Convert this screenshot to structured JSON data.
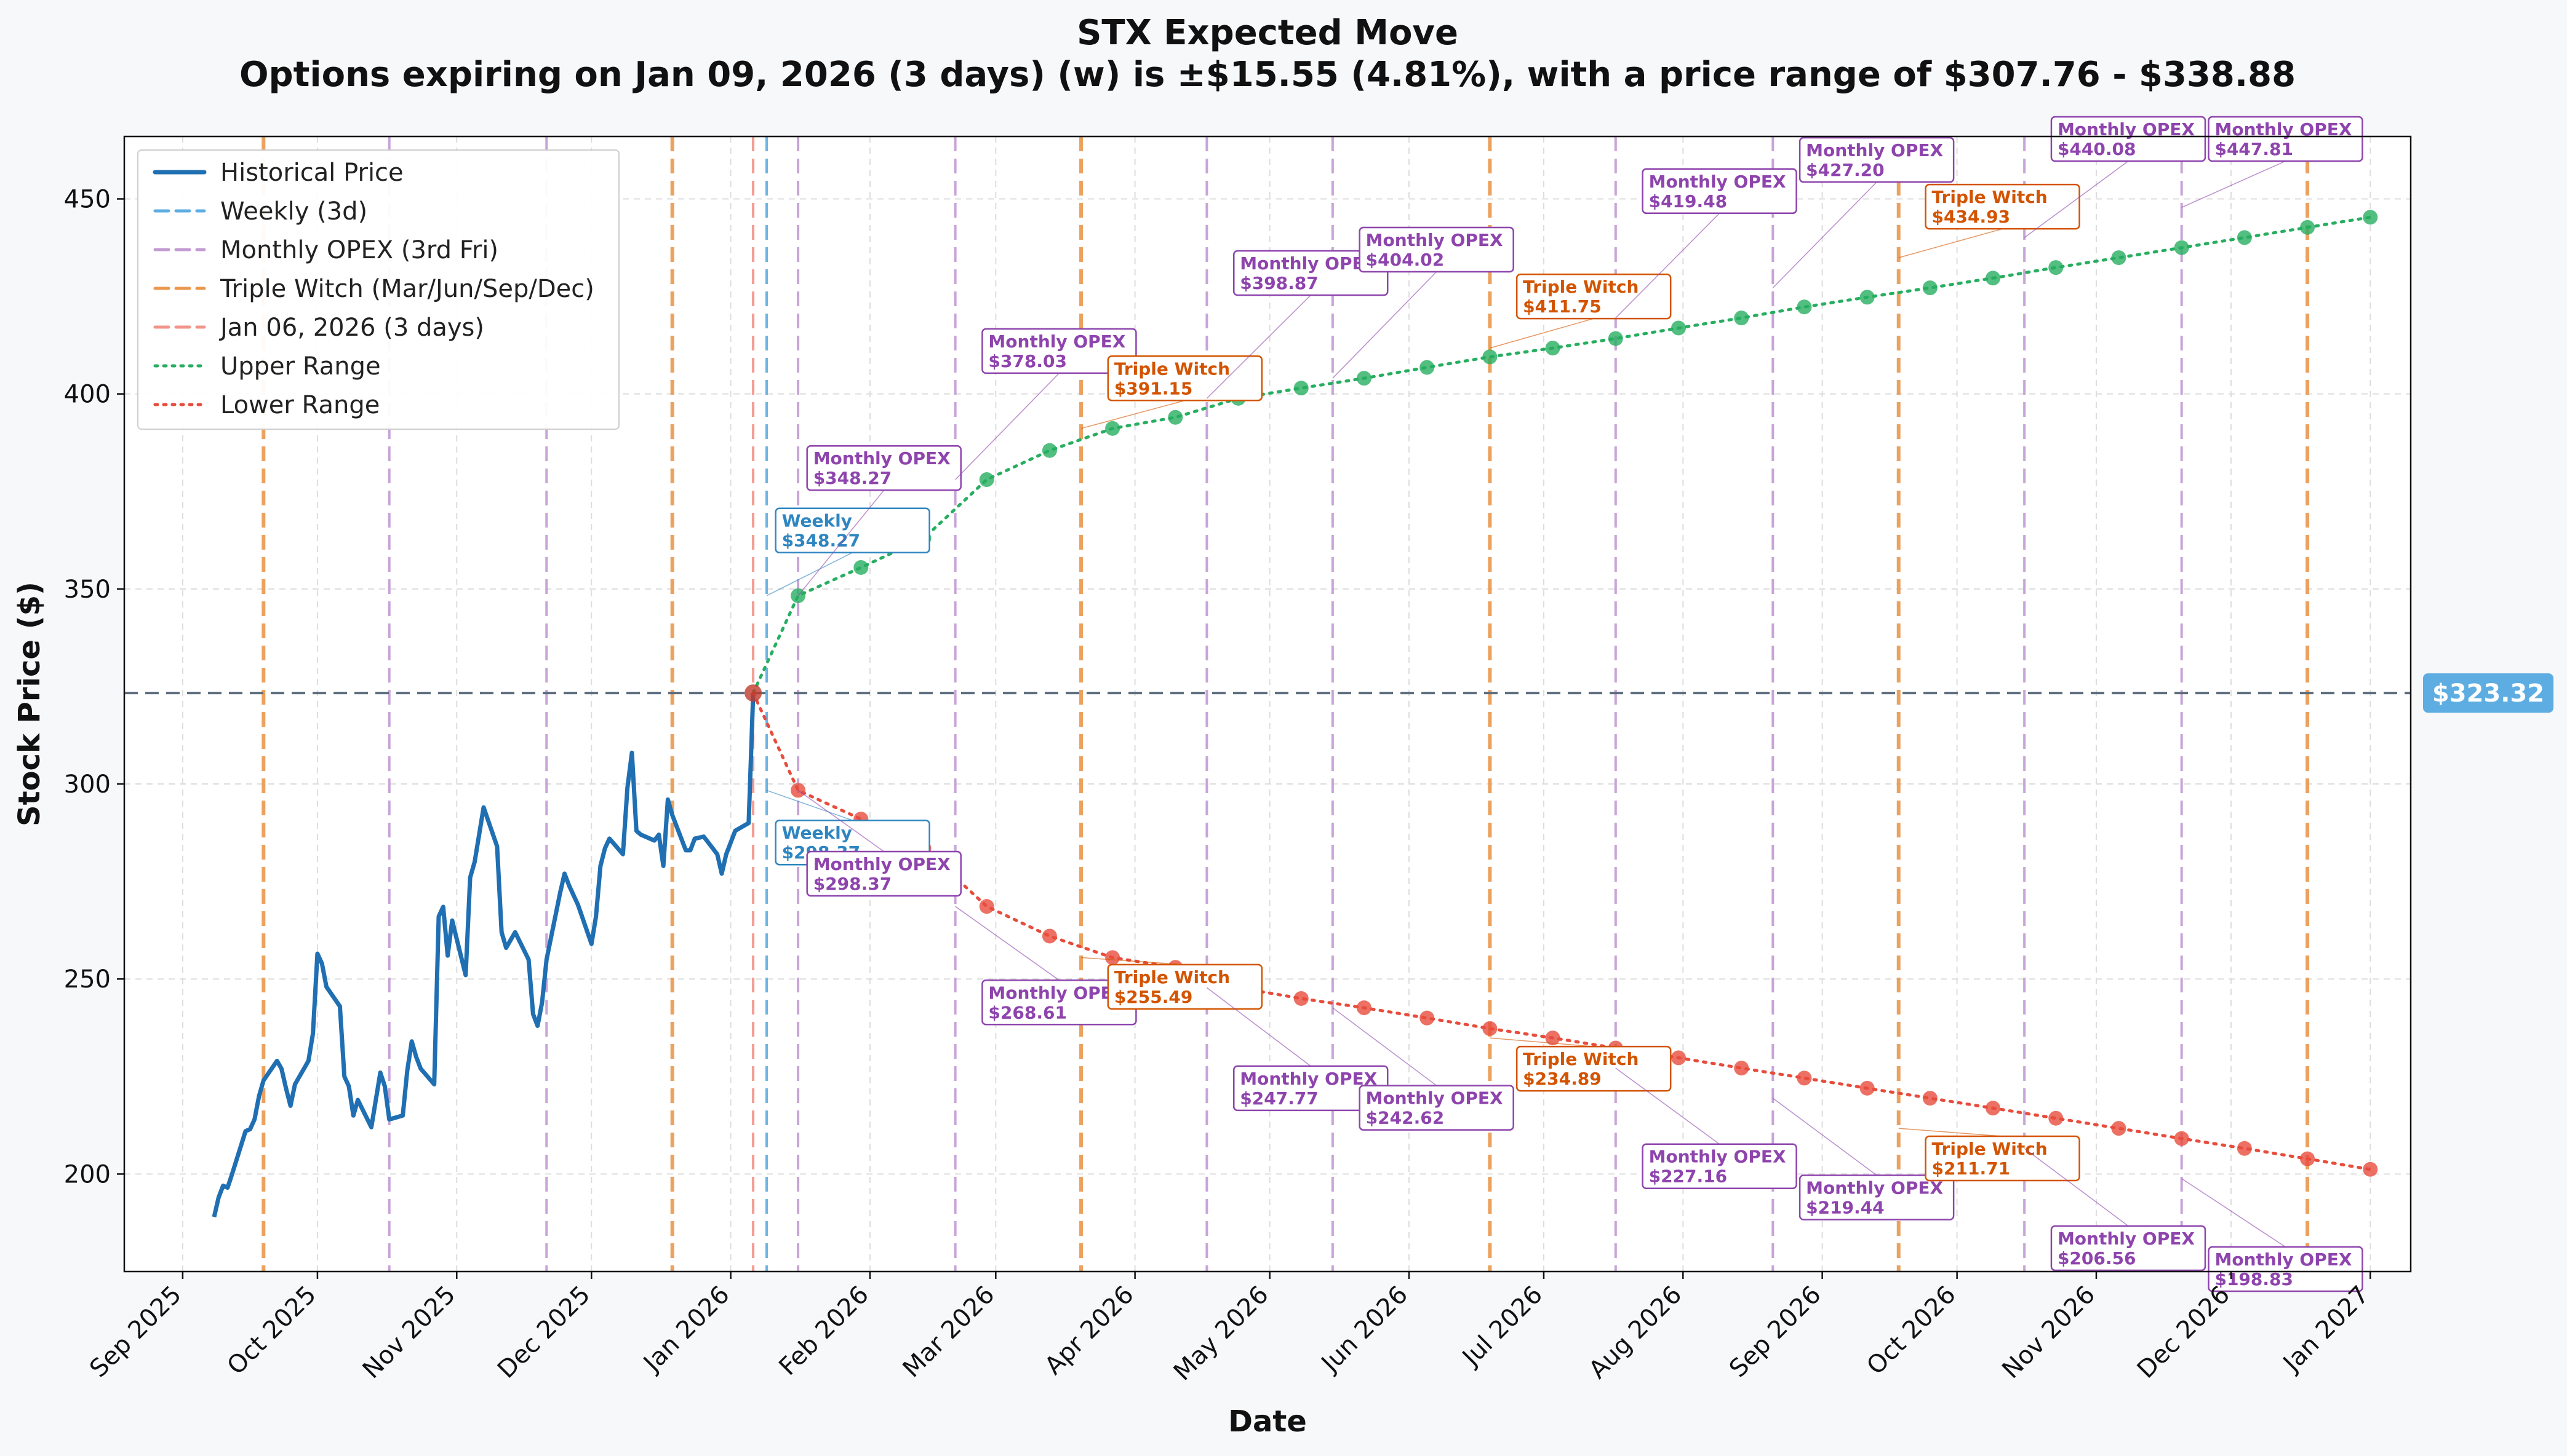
{
  "chart_data": {
    "type": "line",
    "title": "STX Expected Move",
    "subtitle": "Options expiring on Jan 09, 2026 (3 days) (w) is ±$15.55 (4.81%), with a price range of $307.76 - $338.88",
    "xlabel": "Date",
    "ylabel": "Stock Price ($)",
    "ylim": [
      175,
      466
    ],
    "xlim": [
      "2025-08-19",
      "2027-01-10"
    ],
    "grid": true,
    "legend_position": "top-left",
    "x_ticks": [
      "2025-09-01",
      "2025-10-01",
      "2025-11-01",
      "2025-12-01",
      "2026-01-01",
      "2026-02-01",
      "2026-03-01",
      "2026-04-01",
      "2026-05-01",
      "2026-06-01",
      "2026-07-01",
      "2026-08-01",
      "2026-09-01",
      "2026-10-01",
      "2026-11-01",
      "2026-12-01",
      "2027-01-01"
    ],
    "x_tick_labels": [
      "Sep 2025",
      "Oct 2025",
      "Nov 2025",
      "Dec 2025",
      "Jan 2026",
      "Feb 2026",
      "Mar 2026",
      "Apr 2026",
      "May 2026",
      "Jun 2026",
      "Jul 2026",
      "Aug 2026",
      "Sep 2026",
      "Oct 2026",
      "Nov 2026",
      "Dec 2026",
      "Jan 2027"
    ],
    "y_ticks": [
      200,
      250,
      300,
      350,
      400,
      450
    ],
    "current_price": 323.32,
    "current_price_label": "$323.32",
    "current_date": "2026-01-06",
    "colors": {
      "historical": "#1f6fb2",
      "weekly": "#5dade2",
      "monthly": "#c39bd3",
      "triple": "#eb984e",
      "today": "#f1948a",
      "upper": "#27ae60",
      "lower": "#e74c3c",
      "current_line": "#5d6d7e",
      "monthly_text": "#8e44ad",
      "triple_text": "#d35400",
      "weekly_text": "#2e86c1",
      "price_badge": "#5dade2"
    },
    "legend": [
      {
        "label": "Historical Price",
        "style": "solid",
        "color": "#1f6fb2"
      },
      {
        "label": "Weekly (3d)",
        "style": "dashed",
        "color": "#5dade2"
      },
      {
        "label": "Monthly OPEX (3rd Fri)",
        "style": "dashed",
        "color": "#c39bd3"
      },
      {
        "label": "Triple Witch (Mar/Jun/Sep/Dec)",
        "style": "dashed",
        "color": "#eb984e"
      },
      {
        "label": "Jan 06, 2026 (3 days)",
        "style": "dashed",
        "color": "#f1948a"
      },
      {
        "label": "Upper Range",
        "style": "dotted",
        "color": "#27ae60"
      },
      {
        "label": "Lower Range",
        "style": "dotted",
        "color": "#e74c3c"
      }
    ],
    "vertical_lines": [
      {
        "date": "2025-09-19",
        "kind": "triple"
      },
      {
        "date": "2025-10-17",
        "kind": "monthly"
      },
      {
        "date": "2025-11-21",
        "kind": "monthly"
      },
      {
        "date": "2025-12-19",
        "kind": "triple"
      },
      {
        "date": "2026-01-06",
        "kind": "today"
      },
      {
        "date": "2026-01-09",
        "kind": "weekly"
      },
      {
        "date": "2026-01-16",
        "kind": "monthly"
      },
      {
        "date": "2026-02-20",
        "kind": "monthly"
      },
      {
        "date": "2026-03-20",
        "kind": "triple"
      },
      {
        "date": "2026-04-17",
        "kind": "monthly"
      },
      {
        "date": "2026-05-15",
        "kind": "monthly"
      },
      {
        "date": "2026-06-19",
        "kind": "triple"
      },
      {
        "date": "2026-07-17",
        "kind": "monthly"
      },
      {
        "date": "2026-08-21",
        "kind": "monthly"
      },
      {
        "date": "2026-09-18",
        "kind": "triple"
      },
      {
        "date": "2026-10-16",
        "kind": "monthly"
      },
      {
        "date": "2026-11-20",
        "kind": "monthly"
      },
      {
        "date": "2026-12-18",
        "kind": "triple"
      }
    ],
    "historical": {
      "name": "Historical Price",
      "x": [
        "2025-09-08",
        "2025-09-09",
        "2025-09-10",
        "2025-09-11",
        "2025-09-12",
        "2025-09-15",
        "2025-09-16",
        "2025-09-17",
        "2025-09-18",
        "2025-09-19",
        "2025-09-22",
        "2025-09-23",
        "2025-09-24",
        "2025-09-25",
        "2025-09-26",
        "2025-09-29",
        "2025-09-30",
        "2025-10-01",
        "2025-10-02",
        "2025-10-03",
        "2025-10-06",
        "2025-10-07",
        "2025-10-08",
        "2025-10-09",
        "2025-10-10",
        "2025-10-13",
        "2025-10-14",
        "2025-10-15",
        "2025-10-16",
        "2025-10-17",
        "2025-10-20",
        "2025-10-21",
        "2025-10-22",
        "2025-10-23",
        "2025-10-24",
        "2025-10-27",
        "2025-10-28",
        "2025-10-29",
        "2025-10-30",
        "2025-10-31",
        "2025-11-03",
        "2025-11-04",
        "2025-11-05",
        "2025-11-06",
        "2025-11-07",
        "2025-11-10",
        "2025-11-11",
        "2025-11-12",
        "2025-11-13",
        "2025-11-14",
        "2025-11-17",
        "2025-11-18",
        "2025-11-19",
        "2025-11-20",
        "2025-11-21",
        "2025-11-24",
        "2025-11-25",
        "2025-11-26",
        "2025-11-28",
        "2025-12-01",
        "2025-12-02",
        "2025-12-03",
        "2025-12-04",
        "2025-12-05",
        "2025-12-08",
        "2025-12-09",
        "2025-12-10",
        "2025-12-11",
        "2025-12-12",
        "2025-12-15",
        "2025-12-16",
        "2025-12-17",
        "2025-12-18",
        "2025-12-19",
        "2025-12-22",
        "2025-12-23",
        "2025-12-24",
        "2025-12-26",
        "2025-12-29",
        "2025-12-30",
        "2025-12-31",
        "2026-01-02",
        "2026-01-05",
        "2026-01-06"
      ],
      "y": [
        189.0,
        194.0,
        197.0,
        196.5,
        200.0,
        211.0,
        211.5,
        214.0,
        220.0,
        224.0,
        229.0,
        227.0,
        222.0,
        217.5,
        223.0,
        229.0,
        236.0,
        256.5,
        254.0,
        248.0,
        243.0,
        225.0,
        222.5,
        215.0,
        219.0,
        212.0,
        219.0,
        226.0,
        222.5,
        214.0,
        215.0,
        226.5,
        234.0,
        230.0,
        227.0,
        223.0,
        266.0,
        268.5,
        256.0,
        265.0,
        251.0,
        276.0,
        280.0,
        287.0,
        294.0,
        284.0,
        262.0,
        258.0,
        260.0,
        262.0,
        255.0,
        241.0,
        238.0,
        244.0,
        255.0,
        272.0,
        277.0,
        274.0,
        269.0,
        259.0,
        266.0,
        279.0,
        283.5,
        286.0,
        282.0,
        299.0,
        308.0,
        288.0,
        287.0,
        285.5,
        287.0,
        279.0,
        296.0,
        292.0,
        283.0,
        283.0,
        286.0,
        286.5,
        282.0,
        277.0,
        282.0,
        288.0,
        290.0,
        323.32
      ]
    },
    "expected_dates": [
      "2026-01-06",
      "2026-01-16",
      "2026-01-30",
      "2026-02-13",
      "2026-02-27",
      "2026-03-13",
      "2026-03-27",
      "2026-04-10",
      "2026-04-24",
      "2026-05-08",
      "2026-05-22",
      "2026-06-05",
      "2026-06-19",
      "2026-07-03",
      "2026-07-17",
      "2026-07-31",
      "2026-08-14",
      "2026-08-28",
      "2026-09-11",
      "2026-09-25",
      "2026-10-09",
      "2026-10-23",
      "2026-11-06",
      "2026-11-20",
      "2026-12-04",
      "2026-12-18",
      "2027-01-01"
    ],
    "upper_series": {
      "name": "Upper Range",
      "values": [
        323.32,
        348.27,
        355.5,
        363.0,
        378.03,
        385.5,
        391.15,
        394.0,
        398.87,
        401.5,
        404.02,
        406.8,
        409.5,
        411.75,
        414.2,
        416.9,
        419.48,
        422.3,
        424.8,
        427.2,
        429.7,
        432.4,
        434.93,
        437.5,
        440.08,
        442.7,
        445.3
      ]
    },
    "lower_series": {
      "name": "Lower Range",
      "values": [
        323.32,
        298.37,
        291.0,
        283.5,
        268.61,
        261.0,
        255.49,
        253.0,
        247.77,
        245.0,
        242.62,
        240.0,
        237.3,
        234.89,
        232.3,
        229.8,
        227.16,
        224.6,
        222.0,
        219.44,
        216.9,
        214.3,
        211.71,
        209.1,
        206.56,
        203.9,
        201.2
      ]
    },
    "upper_extra": [
      {
        "x": "2026-12-04",
        "y": 447.81
      },
      {
        "x": "2026-12-18",
        "y": 450.5
      },
      {
        "x": "2027-01-01",
        "y": 453.0
      }
    ],
    "lower_extra": [
      {
        "x": "2026-12-04",
        "y": 198.83
      },
      {
        "x": "2026-12-18",
        "y": 196.1
      },
      {
        "x": "2027-01-01",
        "y": 193.5
      }
    ],
    "annotations": [
      {
        "title": "Weekly",
        "value": "$348.27",
        "kind": "weekly",
        "side": "upper",
        "anchor_x": "2026-01-09",
        "anchor_y": 348.27,
        "label_x": "2026-01-11",
        "label_y": 365
      },
      {
        "title": "Monthly OPEX",
        "value": "$348.27",
        "kind": "monthly",
        "side": "upper",
        "anchor_x": "2026-01-16",
        "anchor_y": 348.27,
        "label_x": "2026-01-18",
        "label_y": 381
      },
      {
        "title": "Monthly OPEX",
        "value": "$378.03",
        "kind": "monthly",
        "side": "upper",
        "anchor_x": "2026-02-20",
        "anchor_y": 378.03,
        "label_x": "2026-02-26",
        "label_y": 411
      },
      {
        "title": "Triple Witch",
        "value": "$391.15",
        "kind": "triple",
        "side": "upper",
        "anchor_x": "2026-03-20",
        "anchor_y": 391.15,
        "label_x": "2026-03-26",
        "label_y": 404
      },
      {
        "title": "Monthly OPEX",
        "value": "$398.87",
        "kind": "monthly",
        "side": "upper",
        "anchor_x": "2026-04-17",
        "anchor_y": 398.87,
        "label_x": "2026-04-23",
        "label_y": 431
      },
      {
        "title": "Monthly OPEX",
        "value": "$404.02",
        "kind": "monthly",
        "side": "upper",
        "anchor_x": "2026-05-15",
        "anchor_y": 404.02,
        "label_x": "2026-05-21",
        "label_y": 437
      },
      {
        "title": "Triple Witch",
        "value": "$411.75",
        "kind": "triple",
        "side": "upper",
        "anchor_x": "2026-06-19",
        "anchor_y": 411.75,
        "label_x": "2026-06-25",
        "label_y": 425
      },
      {
        "title": "Monthly OPEX",
        "value": "$419.48",
        "kind": "monthly",
        "side": "upper",
        "anchor_x": "2026-07-17",
        "anchor_y": 419.48,
        "label_x": "2026-07-23",
        "label_y": 452
      },
      {
        "title": "Monthly OPEX",
        "value": "$427.20",
        "kind": "monthly",
        "side": "upper",
        "anchor_x": "2026-08-21",
        "anchor_y": 427.2,
        "label_x": "2026-08-27",
        "label_y": 460
      },
      {
        "title": "Triple Witch",
        "value": "$434.93",
        "kind": "triple",
        "side": "upper",
        "anchor_x": "2026-09-18",
        "anchor_y": 434.93,
        "label_x": "2026-09-24",
        "label_y": 448
      },
      {
        "title": "Monthly OPEX",
        "value": "$440.08",
        "kind": "monthly",
        "side": "upper",
        "anchor_x": "2026-10-16",
        "anchor_y": 440.08,
        "label_x": "2026-10-22",
        "label_y": 472
      },
      {
        "title": "Monthly OPEX",
        "value": "$447.81",
        "kind": "monthly",
        "side": "upper",
        "anchor_x": "2026-11-20",
        "anchor_y": 447.81,
        "label_x": "2026-11-26",
        "label_y": 479
      },
      {
        "title": "Weekly",
        "value": "$298.37",
        "kind": "weekly",
        "side": "lower",
        "anchor_x": "2026-01-09",
        "anchor_y": 298.37,
        "label_x": "2026-01-11",
        "label_y": 285
      },
      {
        "title": "Monthly OPEX",
        "value": "$298.37",
        "kind": "monthly",
        "side": "lower",
        "anchor_x": "2026-01-16",
        "anchor_y": 298.37,
        "label_x": "2026-01-18",
        "label_y": 277
      },
      {
        "title": "Monthly OPEX",
        "value": "$268.61",
        "kind": "monthly",
        "side": "lower",
        "anchor_x": "2026-02-20",
        "anchor_y": 268.61,
        "label_x": "2026-02-26",
        "label_y": 244
      },
      {
        "title": "Triple Witch",
        "value": "$255.49",
        "kind": "triple",
        "side": "lower",
        "anchor_x": "2026-03-20",
        "anchor_y": 255.49,
        "label_x": "2026-03-26",
        "label_y": 248
      },
      {
        "title": "Monthly OPEX",
        "value": "$247.77",
        "kind": "monthly",
        "side": "lower",
        "anchor_x": "2026-04-17",
        "anchor_y": 247.77,
        "label_x": "2026-04-23",
        "label_y": 222
      },
      {
        "title": "Monthly OPEX",
        "value": "$242.62",
        "kind": "monthly",
        "side": "lower",
        "anchor_x": "2026-05-15",
        "anchor_y": 242.62,
        "label_x": "2026-05-21",
        "label_y": 217
      },
      {
        "title": "Triple Witch",
        "value": "$234.89",
        "kind": "triple",
        "side": "lower",
        "anchor_x": "2026-06-19",
        "anchor_y": 234.89,
        "label_x": "2026-06-25",
        "label_y": 227
      },
      {
        "title": "Monthly OPEX",
        "value": "$227.16",
        "kind": "monthly",
        "side": "lower",
        "anchor_x": "2026-07-17",
        "anchor_y": 227.16,
        "label_x": "2026-07-23",
        "label_y": 202
      },
      {
        "title": "Monthly OPEX",
        "value": "$219.44",
        "kind": "monthly",
        "side": "lower",
        "anchor_x": "2026-08-21",
        "anchor_y": 219.44,
        "label_x": "2026-08-27",
        "label_y": 194
      },
      {
        "title": "Triple Witch",
        "value": "$211.71",
        "kind": "triple",
        "side": "lower",
        "anchor_x": "2026-09-18",
        "anchor_y": 211.71,
        "label_x": "2026-09-24",
        "label_y": 204
      },
      {
        "title": "Monthly OPEX",
        "value": "$206.56",
        "kind": "monthly",
        "side": "lower",
        "anchor_x": "2026-10-16",
        "anchor_y": 206.56,
        "label_x": "2026-10-22",
        "label_y": 181
      },
      {
        "title": "Monthly OPEX",
        "value": "$198.83",
        "kind": "monthly",
        "side": "lower",
        "anchor_x": "2026-11-20",
        "anchor_y": 198.83,
        "label_x": "2026-11-26",
        "label_y": 174
      }
    ]
  }
}
